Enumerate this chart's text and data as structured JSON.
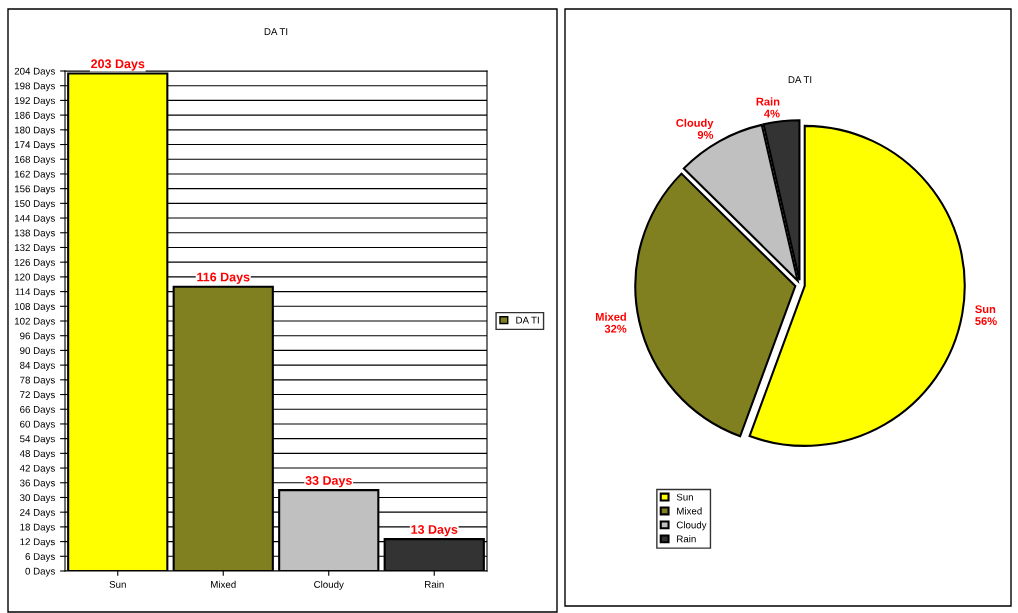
{
  "chart_data": [
    {
      "type": "bar",
      "title": "DA TI",
      "categories": [
        "Sun",
        "Mixed",
        "Cloudy",
        "Rain"
      ],
      "series": [
        {
          "name": "DA TI",
          "color": "#808020",
          "colors": [
            "#ffff00",
            "#808020",
            "#c0c0c0",
            "#333333"
          ],
          "values": [
            203,
            116,
            33,
            13
          ],
          "value_labels": [
            "203 Days",
            "116 Days",
            "33 Days",
            "13 Days"
          ]
        }
      ],
      "ylim": [
        0,
        204
      ],
      "yticks": [
        {
          "value": 0,
          "label": "0 Days"
        },
        {
          "value": 6,
          "label": "6 Days"
        },
        {
          "value": 12,
          "label": "12 Days"
        },
        {
          "value": 18,
          "label": "18 Days"
        },
        {
          "value": 24,
          "label": "24 Days"
        },
        {
          "value": 30,
          "label": "30 Days"
        },
        {
          "value": 36,
          "label": "36 Days"
        },
        {
          "value": 42,
          "label": "42 Days"
        },
        {
          "value": 48,
          "label": "48 Days"
        },
        {
          "value": 54,
          "label": "54 Days"
        },
        {
          "value": 60,
          "label": "60 Days"
        },
        {
          "value": 66,
          "label": "66 Days"
        },
        {
          "value": 72,
          "label": "72 Days"
        },
        {
          "value": 78,
          "label": "78 Days"
        },
        {
          "value": 84,
          "label": "84 Days"
        },
        {
          "value": 90,
          "label": "90 Days"
        },
        {
          "value": 96,
          "label": "96 Days"
        },
        {
          "value": 102,
          "label": "102 Days"
        },
        {
          "value": 108,
          "label": "108 Days"
        },
        {
          "value": 114,
          "label": "114 Days"
        },
        {
          "value": 120,
          "label": "120 Days"
        },
        {
          "value": 126,
          "label": "126 Days"
        },
        {
          "value": 132,
          "label": "132 Days"
        },
        {
          "value": 138,
          "label": "138 Days"
        },
        {
          "value": 144,
          "label": "144 Days"
        },
        {
          "value": 150,
          "label": "150 Days"
        },
        {
          "value": 156,
          "label": "156 Days"
        },
        {
          "value": 162,
          "label": "162 Days"
        },
        {
          "value": 168,
          "label": "168 Days"
        },
        {
          "value": 174,
          "label": "174 Days"
        },
        {
          "value": 180,
          "label": "180 Days"
        },
        {
          "value": 186,
          "label": "186 Days"
        },
        {
          "value": 192,
          "label": "192 Days"
        },
        {
          "value": 198,
          "label": "198 Days"
        },
        {
          "value": 204,
          "label": "204 Days"
        }
      ],
      "grid": "y",
      "legend": "right"
    },
    {
      "type": "pie",
      "title": "DA TI",
      "categories": [
        "Sun",
        "Mixed",
        "Cloudy",
        "Rain"
      ],
      "values": [
        55.6,
        31.8,
        9.0,
        3.6
      ],
      "value_labels": [
        "56%",
        "32%",
        "9%",
        "4%"
      ],
      "colors": [
        "#ffff00",
        "#808020",
        "#c0c0c0",
        "#333333"
      ],
      "legend": "bottom left"
    }
  ]
}
